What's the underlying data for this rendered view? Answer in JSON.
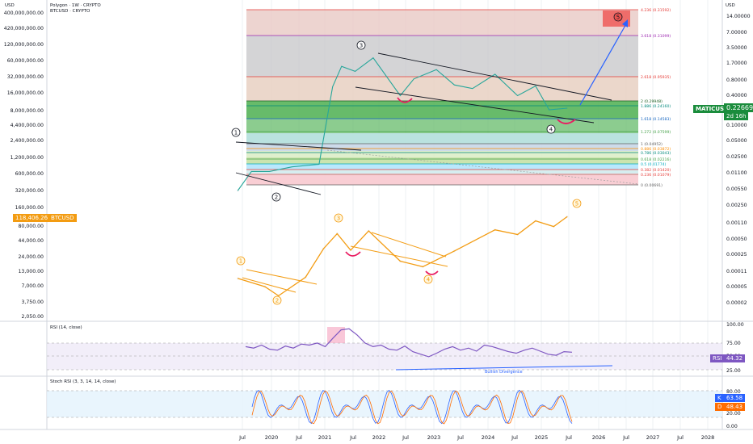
{
  "header": {
    "title": "Polygon · 1W · CRYPTO",
    "btc_title": "BTCUSD · CRYPTO",
    "currency": "USD"
  },
  "symbol_tag": {
    "name": "MATICUSD",
    "price": "0.22669",
    "countdown": "2d 16h",
    "color": "#1a8c3c"
  },
  "btc_tag": {
    "price": "118,406.26",
    "name": "BTCUSD",
    "color": "#f39c12"
  },
  "rsi_panel": {
    "title": "RSI (14, close)",
    "tag_name": "RSI",
    "tag_value": "44.32",
    "axis": [
      "100.00",
      "75.00",
      "50.00",
      "25.00"
    ],
    "divergence_label": "Bullish Divergence",
    "color": "#7e57c2"
  },
  "stoch_panel": {
    "title": "Stoch RSI (3, 3, 14, 14, close)",
    "k_tag": "K",
    "k_value": "63.58",
    "d_tag": "D",
    "d_value": "48.43",
    "axis": [
      "80.00",
      "20.00",
      "0.00"
    ],
    "k_color": "#2962ff",
    "d_color": "#ff6d00"
  },
  "left_axis": [
    "400,000,000.00",
    "420,000,000.00",
    "120,000,000.00",
    "60,000,000.00",
    "32,000,000.00",
    "16,000,000.00",
    "8,000,000.00",
    "4,400,000.00",
    "2,400,000.00",
    "1,200,000.00",
    "600,000.00",
    "320,000.00",
    "160,000.00",
    "80,000.00",
    "44,000.00",
    "24,000.00",
    "13,000.00",
    "7,000.00",
    "3,750.00",
    "2,050.00"
  ],
  "right_axis": [
    "14.00000",
    "7.00000",
    "3.50000",
    "1.70000",
    "0.80000",
    "0.40000",
    "0.20000",
    "0.10000",
    "0.05000",
    "0.02500",
    "0.01100",
    "0.00550",
    "0.00250",
    "0.00110",
    "0.00050",
    "0.00025",
    "0.00011",
    "0.00005",
    "0.00002"
  ],
  "x_axis": [
    "Jul",
    "2020",
    "Jul",
    "2021",
    "Jul",
    "2022",
    "Jul",
    "2023",
    "Jul",
    "2024",
    "Jul",
    "2025",
    "Jul",
    "2026",
    "Jul",
    "2027",
    "Jul",
    "2028"
  ],
  "waves_matic": [
    "1",
    "2",
    "3",
    "4",
    "5"
  ],
  "waves_btc": [
    "1",
    "2",
    "3",
    "4",
    "5"
  ],
  "fib_levels": [
    {
      "label": "4.236 (0.31592)",
      "color": "#e53935"
    },
    {
      "label": "3.618 (0.31099)",
      "color": "#9c27b0"
    },
    {
      "label": "2.618 (0.95935)",
      "color": "#e53935"
    },
    {
      "label": "2 (0.29948)",
      "color": "#1b5e20"
    },
    {
      "label": "1.886 (0.24160)",
      "color": "#00897b"
    },
    {
      "label": "1.618 (0.14583)",
      "color": "#1565c0"
    },
    {
      "label": "1.272 (0.07599)",
      "color": "#43a047"
    },
    {
      "label": "1 (0.04952)",
      "color": "#616161"
    },
    {
      "label": "0.886 (0.03872)",
      "color": "#fb8c00"
    },
    {
      "label": "0.786 (0.03043)",
      "color": "#00897b"
    },
    {
      "label": "0.618 (0.02216)",
      "color": "#43a047"
    },
    {
      "label": "0.5 (0.01774)",
      "color": "#00acc1"
    },
    {
      "label": "0.382 (0.01420)",
      "color": "#e53935"
    },
    {
      "label": "0.236 (0.01079)",
      "color": "#e53935"
    },
    {
      "label": "0 (0.00691)",
      "color": "#616161"
    }
  ],
  "chart_data": {
    "type": "line",
    "title": "Polygon · 1W · CRYPTO",
    "series": [
      {
        "name": "MATICUSD",
        "x": [
          "2019-06",
          "2019-09",
          "2020-01",
          "2020-06",
          "2020-12",
          "2021-03",
          "2021-05",
          "2021-08",
          "2021-12",
          "2022-06",
          "2022-09",
          "2023-02",
          "2023-06",
          "2023-10",
          "2024-03",
          "2024-08",
          "2024-12",
          "2025-03",
          "2025-07"
        ],
        "values": [
          0.0055,
          0.013,
          0.013,
          0.016,
          0.018,
          0.6,
          1.5,
          1.2,
          2.2,
          0.4,
          0.85,
          1.3,
          0.65,
          0.55,
          1.05,
          0.4,
          0.62,
          0.21,
          0.227
        ]
      },
      {
        "name": "BTCUSD",
        "x": [
          "2019-06",
          "2019-12",
          "2020-03",
          "2020-09",
          "2021-01",
          "2021-04",
          "2021-07",
          "2021-11",
          "2022-06",
          "2022-11",
          "2023-06",
          "2024-03",
          "2024-08",
          "2024-12",
          "2025-04",
          "2025-07"
        ],
        "values": [
          10000,
          7200,
          5000,
          10500,
          33000,
          60000,
          31000,
          67000,
          20000,
          16000,
          30000,
          70000,
          58000,
          100000,
          80000,
          118406.26
        ]
      }
    ],
    "rsi": {
      "last": 44.32,
      "range": [
        0,
        100
      ]
    },
    "stoch_rsi": {
      "k": 63.58,
      "d": 48.43,
      "range": [
        0,
        100
      ]
    }
  }
}
